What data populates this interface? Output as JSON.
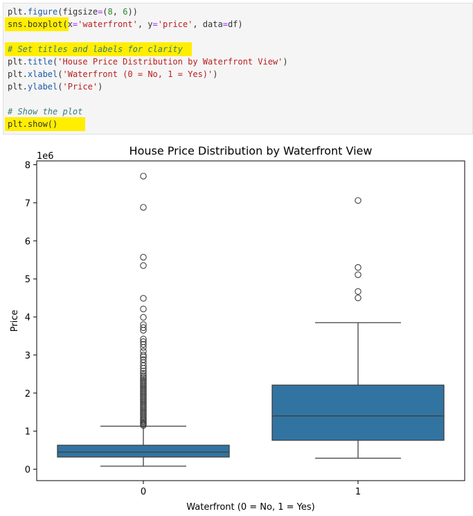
{
  "code_cell": {
    "lines": [
      [
        {
          "t": "plt.",
          "c": "#333333"
        },
        {
          "t": "figure",
          "c": "#1e5aa8"
        },
        {
          "t": "(figsize",
          "c": "#333333"
        },
        {
          "t": "=",
          "c": "#aa22ff"
        },
        {
          "t": "(",
          "c": "#333333"
        },
        {
          "t": "8",
          "c": "#2a8a2a"
        },
        {
          "t": ", ",
          "c": "#333333"
        },
        {
          "t": "6",
          "c": "#2a8a2a"
        },
        {
          "t": "))",
          "c": "#333333"
        }
      ],
      [
        {
          "t": "sns.boxplot(x",
          "c": "#333333"
        },
        {
          "t": "=",
          "c": "#aa22ff"
        },
        {
          "t": "'waterfront'",
          "c": "#b82020"
        },
        {
          "t": ", y",
          "c": "#333333"
        },
        {
          "t": "=",
          "c": "#aa22ff"
        },
        {
          "t": "'price'",
          "c": "#b82020"
        },
        {
          "t": ", data",
          "c": "#333333"
        },
        {
          "t": "=",
          "c": "#aa22ff"
        },
        {
          "t": "df)",
          "c": "#333333"
        }
      ],
      [],
      [
        {
          "t": "# Set titles and labels for clarity",
          "c": "#3d7a7a",
          "i": true
        }
      ],
      [
        {
          "t": "plt.",
          "c": "#333333"
        },
        {
          "t": "title",
          "c": "#1e5aa8"
        },
        {
          "t": "(",
          "c": "#333333"
        },
        {
          "t": "'House Price Distribution by Waterfront View'",
          "c": "#b82020"
        },
        {
          "t": ")",
          "c": "#333333"
        }
      ],
      [
        {
          "t": "plt.",
          "c": "#333333"
        },
        {
          "t": "xlabel",
          "c": "#1e5aa8"
        },
        {
          "t": "(",
          "c": "#333333"
        },
        {
          "t": "'Waterfront (0 = No, 1 = Yes)'",
          "c": "#b82020"
        },
        {
          "t": ")",
          "c": "#333333"
        }
      ],
      [
        {
          "t": "plt.",
          "c": "#333333"
        },
        {
          "t": "ylabel",
          "c": "#1e5aa8"
        },
        {
          "t": "(",
          "c": "#333333"
        },
        {
          "t": "'Price'",
          "c": "#b82020"
        },
        {
          "t": ")",
          "c": "#333333"
        }
      ],
      [],
      [
        {
          "t": "# Show the plot",
          "c": "#3d7a7a",
          "i": true
        }
      ],
      [
        {
          "t": "plt.show()",
          "c": "#333333"
        }
      ]
    ]
  },
  "chart_data": {
    "type": "box",
    "title": "House Price Distribution by Waterfront View",
    "xlabel": "Waterfront (0 = No, 1 = Yes)",
    "ylabel": "Price",
    "y_offset_label": "1e6",
    "ylim": [
      -0.3,
      8.1
    ],
    "yticks": [
      0,
      1,
      2,
      3,
      4,
      5,
      6,
      7,
      8
    ],
    "ytick_labels": [
      "0",
      "1",
      "2",
      "3",
      "4",
      "5",
      "6",
      "7",
      "8"
    ],
    "categories": [
      "0",
      "1"
    ],
    "box_color": "#3274a1",
    "grid": false,
    "boxes": [
      {
        "category": "0",
        "whisker_low": 0.08,
        "q1": 0.32,
        "median": 0.45,
        "q3": 0.63,
        "whisker_high": 1.13,
        "outliers": [
          7.7,
          6.88,
          5.57,
          5.35,
          4.49,
          4.21,
          3.99,
          3.8,
          3.72,
          3.65,
          3.42,
          3.35,
          3.28,
          3.2,
          3.1,
          3.0,
          2.95,
          2.88,
          2.8,
          2.72,
          2.65,
          2.58,
          2.52,
          2.47,
          2.42,
          2.38,
          2.34,
          2.3,
          2.26,
          2.22,
          2.18,
          2.14,
          2.1,
          2.06,
          2.02,
          1.98,
          1.94,
          1.9,
          1.86,
          1.82,
          1.78,
          1.74,
          1.7,
          1.66,
          1.62,
          1.58,
          1.54,
          1.5,
          1.46,
          1.42,
          1.38,
          1.34,
          1.3,
          1.27,
          1.24,
          1.21,
          1.18,
          1.15
        ]
      },
      {
        "category": "1",
        "whisker_low": 0.29,
        "q1": 0.76,
        "median": 1.4,
        "q3": 2.21,
        "whisker_high": 3.85,
        "outliers": [
          7.06,
          5.3,
          5.11,
          4.67,
          4.5
        ]
      }
    ]
  }
}
